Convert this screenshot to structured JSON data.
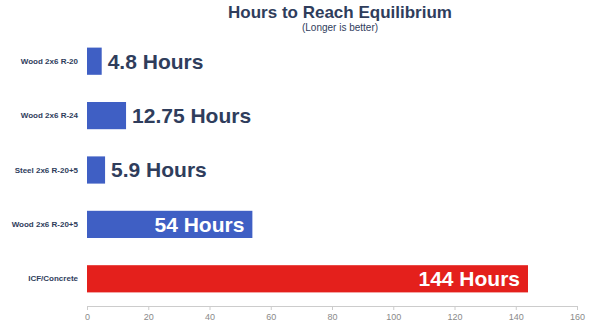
{
  "chart_data": {
    "type": "bar",
    "orientation": "horizontal",
    "title": "Hours to Reach Equilibrium",
    "subtitle": "(Longer is better)",
    "categories": [
      "Wood 2x6 R-20",
      "Wood 2x6 R-24",
      "Steel 2x6 R-20+5",
      "Wood 2x6 R-20+5",
      "ICF/Concrete"
    ],
    "values": [
      4.8,
      12.75,
      5.9,
      54,
      144
    ],
    "value_labels": [
      "4.8 Hours",
      "12.75 Hours",
      "5.9 Hours",
      "54 Hours",
      "144 Hours"
    ],
    "colors": [
      "#3f5fc4",
      "#3f5fc4",
      "#3f5fc4",
      "#3f5fc4",
      "#e4201c"
    ],
    "xlim": [
      0,
      160
    ],
    "xticks": [
      0,
      20,
      40,
      60,
      80,
      100,
      120,
      140,
      160
    ],
    "grid": false,
    "data_labels": true
  }
}
